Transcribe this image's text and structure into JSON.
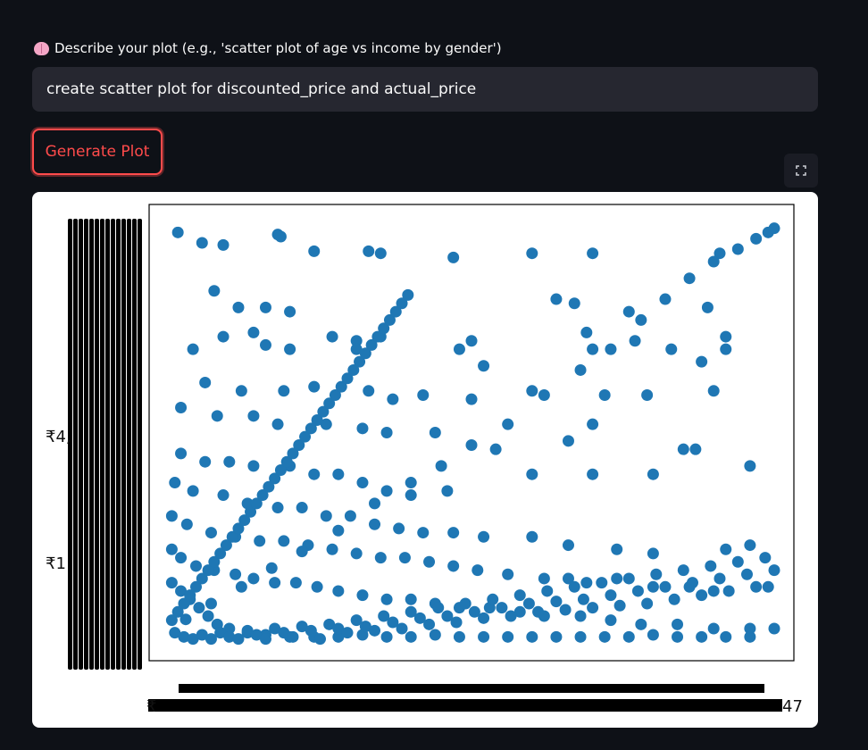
{
  "prompt": {
    "label": "Describe your plot (e.g., 'scatter plot of age vs income by gender')",
    "icon": "brain-icon",
    "value": "create scatter plot for discounted_price and actual_price"
  },
  "generate_button": {
    "label": "Generate Plot"
  },
  "fullscreen_icon": "expand-icon",
  "colors": {
    "point": "#1f77b4",
    "accent": "#ff4b4b",
    "background": "#0e1117",
    "input": "#262730"
  },
  "chart_data": {
    "type": "scatter",
    "title": "",
    "xlabel": "",
    "ylabel": "",
    "series_color": "#1f77b4",
    "grid": false,
    "x_ticks_visible": [
      "₹",
      "₹",
      "47"
    ],
    "y_ticks_visible": [
      "₹4,",
      "₹1",
      "₹1,69"
    ],
    "xlim": [
      0,
      1000
    ],
    "ylim": [
      0,
      1000
    ],
    "note_axes": "categorical string axes (rupee-formatted prices) with overlapping tick labels",
    "diagonal_points": [
      [
        28,
        52
      ],
      [
        70,
        90
      ],
      [
        120,
        130
      ],
      [
        170,
        175
      ],
      [
        220,
        215
      ],
      [
        280,
        265
      ],
      [
        340,
        330
      ],
      [
        400,
        380
      ],
      [
        450,
        420
      ],
      [
        500,
        470
      ],
      [
        560,
        520
      ],
      [
        620,
        590
      ],
      [
        680,
        650
      ],
      [
        730,
        700
      ],
      [
        780,
        770
      ],
      [
        820,
        820
      ],
      [
        860,
        870
      ],
      [
        900,
        910
      ],
      [
        940,
        940
      ],
      [
        970,
        965
      ],
      [
        990,
        980
      ],
      [
        1000,
        990
      ]
    ],
    "points": [
      [
        15,
        980
      ],
      [
        180,
        975
      ],
      [
        185,
        970
      ],
      [
        55,
        955
      ],
      [
        90,
        950
      ],
      [
        240,
        935
      ],
      [
        330,
        935
      ],
      [
        350,
        930
      ],
      [
        470,
        920
      ],
      [
        600,
        930
      ],
      [
        700,
        930
      ],
      [
        910,
        930
      ],
      [
        75,
        840
      ],
      [
        115,
        800
      ],
      [
        160,
        800
      ],
      [
        200,
        790
      ],
      [
        640,
        820
      ],
      [
        670,
        810
      ],
      [
        760,
        790
      ],
      [
        890,
        800
      ],
      [
        90,
        730
      ],
      [
        140,
        740
      ],
      [
        270,
        730
      ],
      [
        310,
        720
      ],
      [
        350,
        730
      ],
      [
        500,
        720
      ],
      [
        690,
        740
      ],
      [
        770,
        720
      ],
      [
        920,
        730
      ],
      [
        40,
        700
      ],
      [
        160,
        710
      ],
      [
        200,
        700
      ],
      [
        310,
        700
      ],
      [
        480,
        700
      ],
      [
        520,
        660
      ],
      [
        700,
        700
      ],
      [
        830,
        700
      ],
      [
        880,
        670
      ],
      [
        920,
        700
      ],
      [
        60,
        620
      ],
      [
        120,
        600
      ],
      [
        190,
        600
      ],
      [
        240,
        610
      ],
      [
        330,
        600
      ],
      [
        370,
        580
      ],
      [
        420,
        590
      ],
      [
        500,
        580
      ],
      [
        600,
        600
      ],
      [
        720,
        590
      ],
      [
        790,
        590
      ],
      [
        900,
        600
      ],
      [
        20,
        560
      ],
      [
        80,
        540
      ],
      [
        140,
        540
      ],
      [
        180,
        520
      ],
      [
        260,
        520
      ],
      [
        320,
        510
      ],
      [
        360,
        500
      ],
      [
        440,
        500
      ],
      [
        540,
        460
      ],
      [
        660,
        480
      ],
      [
        700,
        520
      ],
      [
        850,
        460
      ],
      [
        870,
        460
      ],
      [
        20,
        450
      ],
      [
        60,
        430
      ],
      [
        100,
        430
      ],
      [
        140,
        420
      ],
      [
        200,
        420
      ],
      [
        240,
        400
      ],
      [
        280,
        400
      ],
      [
        320,
        380
      ],
      [
        360,
        360
      ],
      [
        400,
        350
      ],
      [
        460,
        360
      ],
      [
        600,
        400
      ],
      [
        700,
        400
      ],
      [
        800,
        400
      ],
      [
        960,
        420
      ],
      [
        10,
        380
      ],
      [
        40,
        360
      ],
      [
        90,
        350
      ],
      [
        130,
        330
      ],
      [
        180,
        320
      ],
      [
        220,
        320
      ],
      [
        260,
        300
      ],
      [
        300,
        300
      ],
      [
        340,
        280
      ],
      [
        380,
        270
      ],
      [
        420,
        260
      ],
      [
        470,
        260
      ],
      [
        520,
        250
      ],
      [
        600,
        250
      ],
      [
        660,
        230
      ],
      [
        740,
        220
      ],
      [
        800,
        210
      ],
      [
        920,
        220
      ],
      [
        960,
        230
      ],
      [
        5,
        300
      ],
      [
        30,
        280
      ],
      [
        70,
        260
      ],
      [
        110,
        250
      ],
      [
        150,
        240
      ],
      [
        190,
        240
      ],
      [
        230,
        230
      ],
      [
        270,
        220
      ],
      [
        310,
        210
      ],
      [
        350,
        200
      ],
      [
        390,
        200
      ],
      [
        430,
        190
      ],
      [
        470,
        180
      ],
      [
        510,
        170
      ],
      [
        560,
        160
      ],
      [
        620,
        150
      ],
      [
        660,
        150
      ],
      [
        690,
        140
      ],
      [
        740,
        150
      ],
      [
        800,
        130
      ],
      [
        860,
        130
      ],
      [
        900,
        120
      ],
      [
        990,
        130
      ],
      [
        5,
        220
      ],
      [
        20,
        200
      ],
      [
        45,
        180
      ],
      [
        75,
        170
      ],
      [
        110,
        160
      ],
      [
        140,
        150
      ],
      [
        175,
        140
      ],
      [
        210,
        140
      ],
      [
        245,
        130
      ],
      [
        280,
        120
      ],
      [
        320,
        110
      ],
      [
        360,
        100
      ],
      [
        400,
        100
      ],
      [
        440,
        90
      ],
      [
        480,
        80
      ],
      [
        530,
        80
      ],
      [
        580,
        70
      ],
      [
        620,
        60
      ],
      [
        680,
        60
      ],
      [
        730,
        50
      ],
      [
        780,
        40
      ],
      [
        840,
        40
      ],
      [
        900,
        30
      ],
      [
        960,
        30
      ],
      [
        1000,
        30
      ],
      [
        5,
        140
      ],
      [
        20,
        120
      ],
      [
        35,
        100
      ],
      [
        50,
        80
      ],
      [
        65,
        60
      ],
      [
        80,
        40
      ],
      [
        100,
        30
      ],
      [
        130,
        20
      ],
      [
        160,
        15
      ],
      [
        200,
        10
      ],
      [
        240,
        10
      ],
      [
        280,
        10
      ],
      [
        320,
        15
      ],
      [
        360,
        10
      ],
      [
        400,
        10
      ],
      [
        440,
        15
      ],
      [
        480,
        10
      ],
      [
        520,
        10
      ],
      [
        560,
        10
      ],
      [
        600,
        10
      ],
      [
        640,
        10
      ],
      [
        680,
        10
      ],
      [
        720,
        10
      ],
      [
        760,
        10
      ],
      [
        800,
        15
      ],
      [
        840,
        10
      ],
      [
        880,
        10
      ],
      [
        920,
        10
      ],
      [
        960,
        10
      ],
      [
        10,
        20
      ],
      [
        25,
        10
      ],
      [
        40,
        5
      ],
      [
        55,
        15
      ],
      [
        70,
        5
      ],
      [
        85,
        20
      ],
      [
        100,
        10
      ],
      [
        115,
        5
      ],
      [
        130,
        25
      ],
      [
        145,
        15
      ],
      [
        160,
        5
      ],
      [
        175,
        30
      ],
      [
        190,
        20
      ],
      [
        205,
        10
      ],
      [
        220,
        35
      ],
      [
        235,
        25
      ],
      [
        250,
        5
      ],
      [
        265,
        40
      ],
      [
        280,
        30
      ],
      [
        295,
        20
      ],
      [
        310,
        50
      ],
      [
        325,
        35
      ],
      [
        340,
        25
      ],
      [
        355,
        60
      ],
      [
        370,
        45
      ],
      [
        385,
        30
      ],
      [
        400,
        70
      ],
      [
        415,
        55
      ],
      [
        430,
        40
      ],
      [
        445,
        80
      ],
      [
        460,
        60
      ],
      [
        475,
        45
      ],
      [
        490,
        90
      ],
      [
        505,
        70
      ],
      [
        520,
        55
      ],
      [
        535,
        100
      ],
      [
        550,
        80
      ],
      [
        565,
        60
      ],
      [
        580,
        110
      ],
      [
        595,
        90
      ],
      [
        610,
        70
      ],
      [
        625,
        120
      ],
      [
        640,
        95
      ],
      [
        655,
        75
      ],
      [
        670,
        130
      ],
      [
        685,
        100
      ],
      [
        700,
        80
      ],
      [
        715,
        140
      ],
      [
        730,
        110
      ],
      [
        745,
        85
      ],
      [
        760,
        150
      ],
      [
        775,
        120
      ],
      [
        790,
        90
      ],
      [
        805,
        160
      ],
      [
        820,
        130
      ],
      [
        835,
        100
      ],
      [
        850,
        170
      ],
      [
        865,
        140
      ],
      [
        880,
        110
      ],
      [
        895,
        180
      ],
      [
        910,
        150
      ],
      [
        925,
        120
      ],
      [
        940,
        190
      ],
      [
        955,
        160
      ],
      [
        970,
        130
      ],
      [
        985,
        200
      ],
      [
        1000,
        170
      ],
      [
        5,
        50
      ],
      [
        15,
        70
      ],
      [
        25,
        90
      ],
      [
        35,
        110
      ],
      [
        45,
        130
      ],
      [
        55,
        150
      ],
      [
        65,
        170
      ],
      [
        75,
        190
      ],
      [
        85,
        210
      ],
      [
        95,
        230
      ],
      [
        105,
        250
      ],
      [
        115,
        270
      ],
      [
        125,
        290
      ],
      [
        135,
        310
      ],
      [
        145,
        330
      ],
      [
        155,
        350
      ],
      [
        165,
        370
      ],
      [
        175,
        390
      ],
      [
        185,
        410
      ],
      [
        195,
        430
      ],
      [
        205,
        450
      ],
      [
        215,
        470
      ],
      [
        225,
        490
      ],
      [
        235,
        510
      ],
      [
        245,
        530
      ],
      [
        255,
        550
      ],
      [
        265,
        570
      ],
      [
        275,
        590
      ],
      [
        285,
        610
      ],
      [
        295,
        630
      ],
      [
        305,
        650
      ],
      [
        315,
        670
      ],
      [
        325,
        690
      ],
      [
        335,
        710
      ],
      [
        345,
        730
      ],
      [
        355,
        750
      ],
      [
        365,
        770
      ],
      [
        375,
        790
      ],
      [
        385,
        810
      ],
      [
        395,
        830
      ]
    ]
  }
}
